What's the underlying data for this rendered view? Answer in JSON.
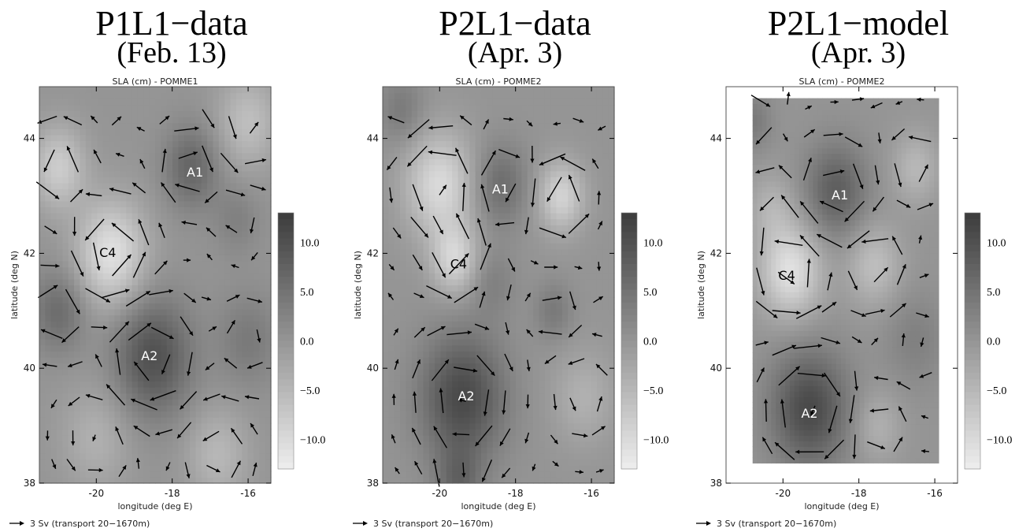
{
  "chart_data": [
    {
      "type": "heatmap",
      "title": "P1L1−data",
      "subtitle": "(Feb. 13)",
      "map_label": "SLA (cm) - POMME1",
      "xlabel": "longitude (deg E)",
      "ylabel": "latitude (deg N)",
      "xlim": [
        -21.5,
        -15.4
      ],
      "ylim": [
        38,
        44.9
      ],
      "xticks": [
        "-20",
        "-18",
        "-16"
      ],
      "yticks": [
        "38",
        "40",
        "42",
        "44"
      ],
      "colorbar": {
        "ticks": [
          "10.0",
          "5.0",
          "0.0",
          "−5.0",
          "−10.0"
        ],
        "range": [
          -13,
          13
        ]
      },
      "legend": "3 Sv (transport 20−1670m)",
      "eddies": [
        {
          "label": "A1",
          "lon": -17.4,
          "lat": 43.4,
          "text_color": "#ffffff"
        },
        {
          "label": "C4",
          "lon": -19.7,
          "lat": 42.0,
          "text_color": "#000000"
        },
        {
          "label": "A2",
          "lon": -18.6,
          "lat": 40.2,
          "text_color": "#ffffff"
        }
      ],
      "sla_features": [
        {
          "lon": -17.5,
          "lat": 43.5,
          "amp": 7,
          "r": 0.7
        },
        {
          "lon": -19.6,
          "lat": 42.0,
          "amp": -11,
          "r": 0.9
        },
        {
          "lon": -18.5,
          "lat": 40.2,
          "amp": 10,
          "r": 1.0
        },
        {
          "lon": -21.0,
          "lat": 41.0,
          "amp": 6,
          "r": 0.7
        },
        {
          "lon": -21.0,
          "lat": 43.5,
          "amp": -8,
          "r": 0.7
        },
        {
          "lon": -16.0,
          "lat": 44.3,
          "amp": -6,
          "r": 0.8
        },
        {
          "lon": -16.0,
          "lat": 40.5,
          "amp": 4,
          "r": 0.8
        },
        {
          "lon": -20.0,
          "lat": 38.8,
          "amp": -4,
          "r": 0.9
        },
        {
          "lon": -16.8,
          "lat": 38.5,
          "amp": -5,
          "r": 0.8
        },
        {
          "lon": -16.3,
          "lat": 42.6,
          "amp": 3,
          "r": 0.6
        }
      ],
      "map_mask": null
    },
    {
      "type": "heatmap",
      "title": "P2L1−data",
      "subtitle": "(Apr. 3)",
      "map_label": "SLA (cm) - POMME2",
      "xlabel": "longitude (deg E)",
      "ylabel": "latitude (deg N)",
      "xlim": [
        -21.5,
        -15.4
      ],
      "ylim": [
        38,
        44.9
      ],
      "xticks": [
        "-20",
        "-18",
        "-16"
      ],
      "yticks": [
        "38",
        "40",
        "42",
        "44"
      ],
      "colorbar": {
        "ticks": [
          "10.0",
          "5.0",
          "0.0",
          "−5.0",
          "−10.0"
        ],
        "range": [
          -13,
          13
        ]
      },
      "legend": "3 Sv (transport 20−1670m)",
      "eddies": [
        {
          "label": "A1",
          "lon": -18.4,
          "lat": 43.1,
          "text_color": "#ffffff"
        },
        {
          "label": "C4",
          "lon": -19.5,
          "lat": 41.8,
          "text_color": "#000000"
        },
        {
          "label": "A2",
          "lon": -19.3,
          "lat": 39.5,
          "text_color": "#ffffff"
        }
      ],
      "sla_features": [
        {
          "lon": -18.4,
          "lat": 43.2,
          "amp": 6,
          "r": 0.7
        },
        {
          "lon": -20.0,
          "lat": 43.2,
          "amp": -10,
          "r": 0.9
        },
        {
          "lon": -19.6,
          "lat": 41.9,
          "amp": -9,
          "r": 0.6
        },
        {
          "lon": -19.4,
          "lat": 39.5,
          "amp": 11,
          "r": 1.1
        },
        {
          "lon": -16.8,
          "lat": 43.0,
          "amp": -9,
          "r": 0.6
        },
        {
          "lon": -18.6,
          "lat": 41.5,
          "amp": 3,
          "r": 0.6
        },
        {
          "lon": -21.0,
          "lat": 44.5,
          "amp": 4,
          "r": 0.6
        },
        {
          "lon": -17.0,
          "lat": 41.0,
          "amp": 4,
          "r": 0.5
        },
        {
          "lon": -16.2,
          "lat": 39.5,
          "amp": -4,
          "r": 0.8
        },
        {
          "lon": -19.5,
          "lat": 38.0,
          "amp": 6,
          "r": 0.6
        }
      ],
      "map_mask": null
    },
    {
      "type": "heatmap",
      "title": "P2L1−model",
      "subtitle": "(Apr. 3)",
      "map_label": "SLA (cm) - POMME2",
      "xlabel": "longitude (deg E)",
      "ylabel": "latitude (deg N)",
      "xlim": [
        -21.5,
        -15.4
      ],
      "ylim": [
        38,
        44.9
      ],
      "xticks": [
        "-20",
        "-18",
        "-16"
      ],
      "yticks": [
        "38",
        "40",
        "42",
        "44"
      ],
      "colorbar": {
        "ticks": [
          "10.0",
          "5.0",
          "0.0",
          "−5.0",
          "−10.0"
        ],
        "range": [
          -13,
          13
        ]
      },
      "legend": "3 Sv (transport 20−1670m)",
      "eddies": [
        {
          "label": "A1",
          "lon": -18.5,
          "lat": 43.0,
          "text_color": "#ffffff"
        },
        {
          "label": "C4",
          "lon": -19.9,
          "lat": 41.6,
          "text_color": "#000000"
        },
        {
          "label": "A2",
          "lon": -19.3,
          "lat": 39.2,
          "text_color": "#ffffff"
        }
      ],
      "sla_features": [
        {
          "lon": -18.6,
          "lat": 43.1,
          "amp": 8,
          "r": 0.8
        },
        {
          "lon": -19.8,
          "lat": 41.7,
          "amp": -11,
          "r": 0.8
        },
        {
          "lon": -19.3,
          "lat": 39.3,
          "amp": 11,
          "r": 1.0
        },
        {
          "lon": -17.6,
          "lat": 41.8,
          "amp": -6,
          "r": 0.7
        },
        {
          "lon": -20.3,
          "lat": 42.8,
          "amp": -4,
          "r": 0.6
        },
        {
          "lon": -16.5,
          "lat": 43.5,
          "amp": -5,
          "r": 0.6
        },
        {
          "lon": -16.5,
          "lat": 40.5,
          "amp": 3,
          "r": 0.8
        },
        {
          "lon": -17.5,
          "lat": 39.0,
          "amp": -4,
          "r": 0.6
        },
        {
          "lon": -20.8,
          "lat": 44.3,
          "amp": 4,
          "r": 0.5
        }
      ],
      "map_mask": {
        "lon": [
          -20.8,
          -15.9
        ],
        "lat": [
          38.35,
          44.7
        ]
      }
    }
  ]
}
